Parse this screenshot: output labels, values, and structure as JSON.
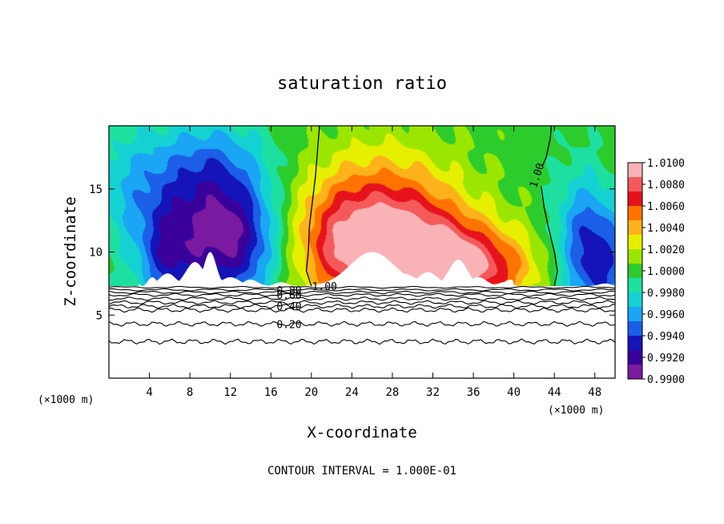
{
  "chart_data": {
    "type": "heatmap",
    "title": "saturation ratio",
    "xlabel": "X-coordinate",
    "ylabel": "Z-coordinate",
    "x_unit": "(×1000 m)",
    "z_unit": "(×1000 m)",
    "xlim": [
      0,
      50
    ],
    "ylim": [
      0,
      20
    ],
    "x_ticks": [
      4,
      8,
      12,
      16,
      20,
      24,
      28,
      32,
      36,
      40,
      44,
      48
    ],
    "y_ticks": [
      5,
      10,
      15
    ],
    "footer": "CONTOUR INTERVAL = 1.000E-01",
    "colorbar": {
      "labels": [
        "1.0100",
        "1.0080",
        "1.0060",
        "1.0040",
        "1.0020",
        "1.0000",
        "0.9980",
        "0.9960",
        "0.9940",
        "0.9920",
        "0.9900"
      ],
      "colors": [
        "#f9b3b7",
        "#f55a5a",
        "#e6131d",
        "#ff7400",
        "#ffb21a",
        "#e6ef00",
        "#9be600",
        "#2dcc2d",
        "#1de0a0",
        "#15d2d2",
        "#1aa5f5",
        "#1a5fe6",
        "#1414b8",
        "#3a009a",
        "#7a1aa0"
      ]
    },
    "contour_labels": [
      {
        "text": "1.00",
        "x": 42.6,
        "z": 16.3
      },
      {
        "text": "1.00",
        "x": 21.3,
        "z": 7.3
      },
      {
        "text": "0.80",
        "x": 17.8,
        "z": 7.0
      },
      {
        "text": "0.60",
        "x": 17.8,
        "z": 6.6
      },
      {
        "text": "0.40",
        "x": 17.8,
        "z": 5.7
      },
      {
        "text": "0.20",
        "x": 17.8,
        "z": 4.3
      }
    ],
    "contour_levels_below": [
      0.8,
      0.6,
      0.4,
      0.2
    ],
    "series": [
      {
        "name": "blue band (left)",
        "level": 0.993,
        "blobs": [
          {
            "x": 10.0,
            "z": 11.5,
            "sx": 3.0,
            "sz": 4.0,
            "amp": -0.0075
          },
          {
            "x": 5.5,
            "z": 9.5,
            "sx": 2.0,
            "sz": 3.0,
            "amp": -0.0045
          },
          {
            "x": 14.0,
            "z": 11.0,
            "sx": 2.5,
            "sz": 3.5,
            "amp": -0.0045
          },
          {
            "x": 3.0,
            "z": 15.0,
            "sx": 3.5,
            "sz": 3.5,
            "amp": -0.0035
          },
          {
            "x": 10.5,
            "z": 17.5,
            "sx": 4.0,
            "sz": 2.5,
            "amp": -0.0025
          }
        ]
      },
      {
        "name": "red band (center)",
        "level": 1.006,
        "blobs": [
          {
            "x": 27.0,
            "z": 12.0,
            "sx": 5.5,
            "sz": 4.0,
            "amp": 0.0078
          },
          {
            "x": 32.0,
            "z": 9.5,
            "sx": 5.0,
            "sz": 2.5,
            "amp": 0.006
          },
          {
            "x": 37.0,
            "z": 8.5,
            "sx": 4.0,
            "sz": 2.0,
            "amp": 0.0045
          },
          {
            "x": 23.0,
            "z": 10.0,
            "sx": 3.0,
            "sz": 3.0,
            "amp": 0.003
          }
        ]
      },
      {
        "name": "blue band (right)",
        "level": 0.995,
        "blobs": [
          {
            "x": 48.5,
            "z": 9.0,
            "sx": 2.5,
            "sz": 3.5,
            "amp": -0.006
          },
          {
            "x": 46.5,
            "z": 12.5,
            "sx": 2.0,
            "sz": 3.5,
            "amp": -0.0025
          }
        ]
      }
    ]
  }
}
